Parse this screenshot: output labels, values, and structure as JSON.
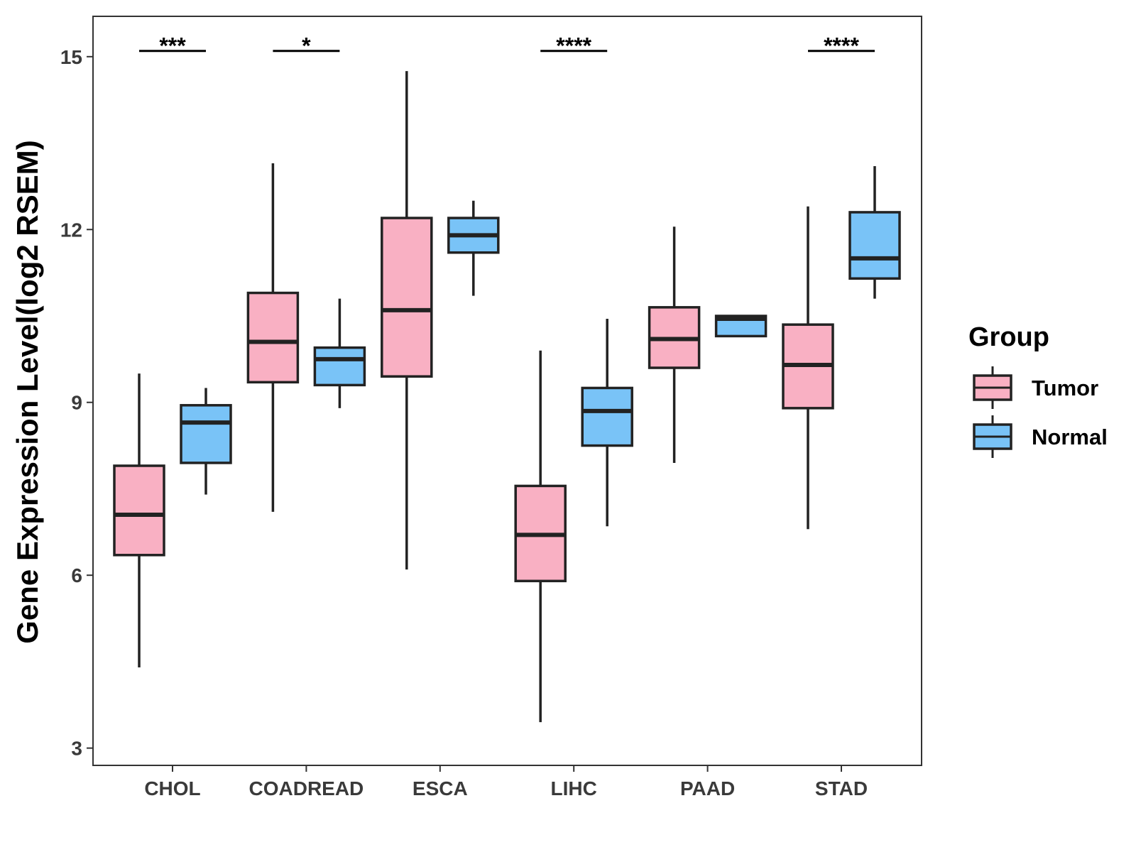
{
  "chart_data": {
    "type": "boxplot",
    "title": "",
    "xlabel": "",
    "ylabel": "Gene Expression Level(log2 RSEM)",
    "ylim": [
      2.7,
      15.7
    ],
    "yticks": [
      3,
      6,
      9,
      12,
      15
    ],
    "grid": false,
    "categories": [
      "CHOL",
      "COADREAD",
      "ESCA",
      "LIHC",
      "PAAD",
      "STAD"
    ],
    "legend": {
      "title": "Group",
      "position": "right"
    },
    "series": [
      {
        "name": "Tumor",
        "color": "#f9b0c3",
        "boxes": [
          {
            "category": "CHOL",
            "whisker_low": 4.4,
            "q1": 6.35,
            "median": 7.05,
            "q3": 7.9,
            "whisker_high": 9.5
          },
          {
            "category": "COADREAD",
            "whisker_low": 7.1,
            "q1": 9.35,
            "median": 10.05,
            "q3": 10.9,
            "whisker_high": 13.15
          },
          {
            "category": "ESCA",
            "whisker_low": 6.1,
            "q1": 9.45,
            "median": 10.6,
            "q3": 12.2,
            "whisker_high": 14.75
          },
          {
            "category": "LIHC",
            "whisker_low": 3.45,
            "q1": 5.9,
            "median": 6.7,
            "q3": 7.55,
            "whisker_high": 9.9
          },
          {
            "category": "PAAD",
            "whisker_low": 7.95,
            "q1": 9.6,
            "median": 10.1,
            "q3": 10.65,
            "whisker_high": 12.05
          },
          {
            "category": "STAD",
            "whisker_low": 6.8,
            "q1": 8.9,
            "median": 9.65,
            "q3": 10.35,
            "whisker_high": 12.4
          }
        ]
      },
      {
        "name": "Normal",
        "color": "#79c3f7",
        "boxes": [
          {
            "category": "CHOL",
            "whisker_low": 7.4,
            "q1": 7.95,
            "median": 8.65,
            "q3": 8.95,
            "whisker_high": 9.25
          },
          {
            "category": "COADREAD",
            "whisker_low": 8.9,
            "q1": 9.3,
            "median": 9.75,
            "q3": 9.95,
            "whisker_high": 10.8
          },
          {
            "category": "ESCA",
            "whisker_low": 10.85,
            "q1": 11.6,
            "median": 11.9,
            "q3": 12.2,
            "whisker_high": 12.5
          },
          {
            "category": "LIHC",
            "whisker_low": 6.85,
            "q1": 8.25,
            "median": 8.85,
            "q3": 9.25,
            "whisker_high": 10.45
          },
          {
            "category": "PAAD",
            "whisker_low": 10.15,
            "q1": 10.15,
            "median": 10.45,
            "q3": 10.5,
            "whisker_high": 10.5
          },
          {
            "category": "STAD",
            "whisker_low": 10.8,
            "q1": 11.15,
            "median": 11.5,
            "q3": 12.3,
            "whisker_high": 13.1
          }
        ]
      }
    ],
    "annotations": [
      {
        "category": "CHOL",
        "label": "***",
        "y": 15.1
      },
      {
        "category": "COADREAD",
        "label": "*",
        "y": 15.1
      },
      {
        "category": "LIHC",
        "label": "****",
        "y": 15.1
      },
      {
        "category": "STAD",
        "label": "****",
        "y": 15.1
      }
    ]
  }
}
